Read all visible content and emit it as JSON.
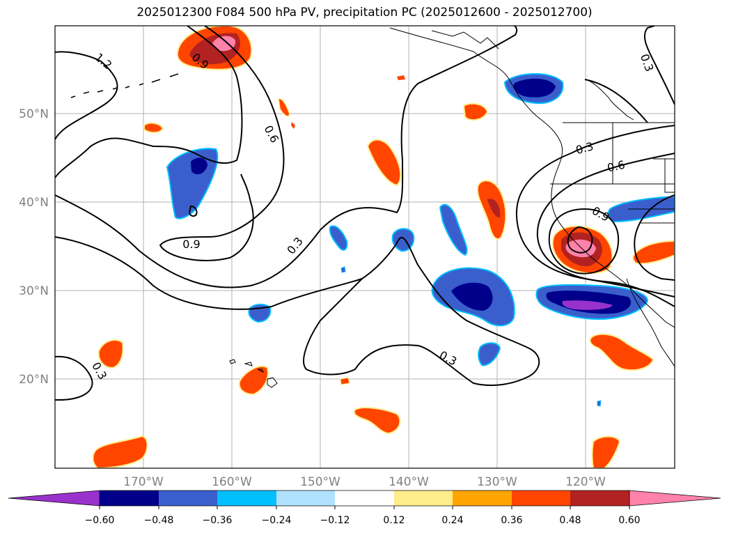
{
  "title": "2025012300 F084 500 hPa PV, precipitation PC (2025012600 - 2025012700)",
  "map": {
    "lon_labels": [
      "170°W",
      "160°W",
      "150°W",
      "140°W",
      "130°W",
      "120°W"
    ],
    "lat_labels": [
      "50°N",
      "40°N",
      "30°N",
      "20°N"
    ],
    "contour_labels": [
      "1.2",
      "0.9",
      "0.6",
      "0.9",
      "0.3",
      "0.3",
      "0.3",
      "0.3",
      "0.6",
      "0.9",
      "0.3",
      "0.3"
    ]
  },
  "colorbar": {
    "colors": [
      "#9932CC",
      "#00008B",
      "#3A5FCD",
      "#00BFFF",
      "#B0E2FF",
      "#FFFFFF",
      "#FFEC8B",
      "#FFA500",
      "#FF4500",
      "#B22222",
      "#FF82AB"
    ],
    "tick_labels": [
      "−0.60",
      "−0.48",
      "−0.36",
      "−0.24",
      "−0.12",
      "0.12",
      "0.24",
      "0.36",
      "0.48",
      "0.60"
    ]
  }
}
